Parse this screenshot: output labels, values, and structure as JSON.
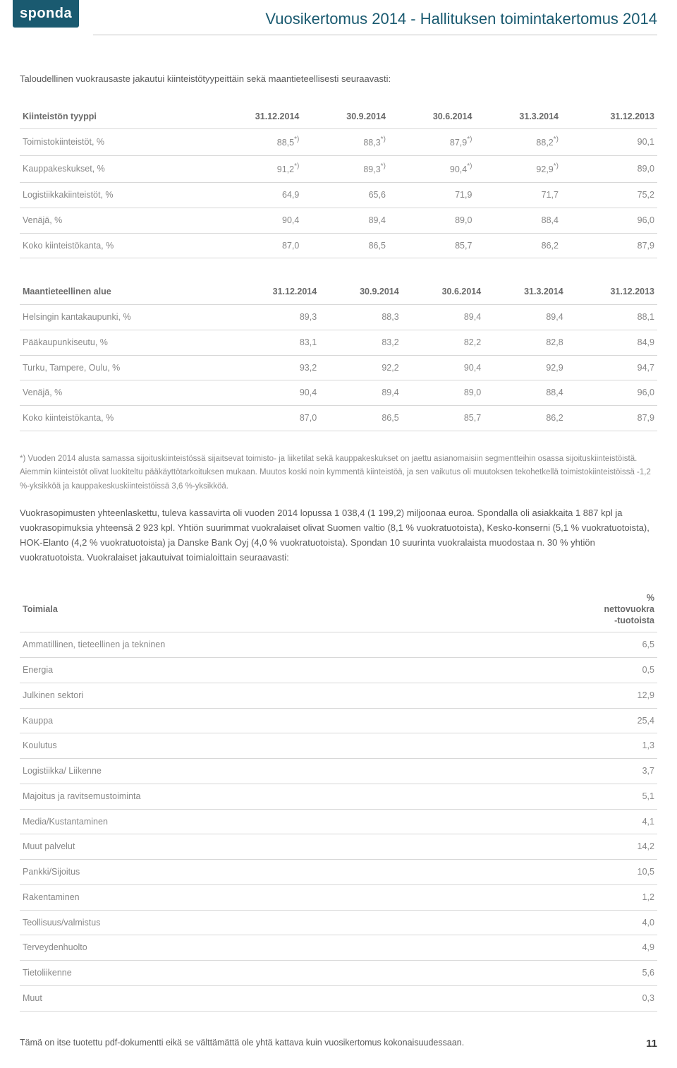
{
  "header": {
    "logo": "sponda",
    "title": "Vuosikertomus 2014 - Hallituksen toimintakertomus 2014"
  },
  "intro": "Taloudellinen vuokrausaste jakautui kiinteistötyypeittäin sekä maantieteellisesti seuraavasti:",
  "table1": {
    "columns": [
      "Kiinteistön tyyppi",
      "31.12.2014",
      "30.9.2014",
      "30.6.2014",
      "31.3.2014",
      "31.12.2013"
    ],
    "rows": [
      {
        "label": "Toimistokiinteistöt, %",
        "vals": [
          "88,5",
          "88,3",
          "87,9",
          "88,2",
          "90,1"
        ],
        "sup": [
          true,
          true,
          true,
          true,
          false
        ]
      },
      {
        "label": "Kauppakeskukset, %",
        "vals": [
          "91,2",
          "89,3",
          "90,4",
          "92,9",
          "89,0"
        ],
        "sup": [
          true,
          true,
          true,
          true,
          false
        ]
      },
      {
        "label": "Logistiikkakiinteistöt, %",
        "vals": [
          "64,9",
          "65,6",
          "71,9",
          "71,7",
          "75,2"
        ],
        "sup": [
          false,
          false,
          false,
          false,
          false
        ]
      },
      {
        "label": "Venäjä, %",
        "vals": [
          "90,4",
          "89,4",
          "89,0",
          "88,4",
          "96,0"
        ],
        "sup": [
          false,
          false,
          false,
          false,
          false
        ]
      },
      {
        "label": "Koko kiinteistökanta, %",
        "vals": [
          "87,0",
          "86,5",
          "85,7",
          "86,2",
          "87,9"
        ],
        "sup": [
          false,
          false,
          false,
          false,
          false
        ]
      }
    ]
  },
  "table2": {
    "columns": [
      "Maantieteellinen alue",
      "31.12.2014",
      "30.9.2014",
      "30.6.2014",
      "31.3.2014",
      "31.12.2013"
    ],
    "rows": [
      {
        "label": "Helsingin kantakaupunki, %",
        "vals": [
          "89,3",
          "88,3",
          "89,4",
          "89,4",
          "88,1"
        ]
      },
      {
        "label": "Pääkaupunkiseutu, %",
        "vals": [
          "83,1",
          "83,2",
          "82,2",
          "82,8",
          "84,9"
        ]
      },
      {
        "label": "Turku, Tampere, Oulu, %",
        "vals": [
          "93,2",
          "92,2",
          "90,4",
          "92,9",
          "94,7"
        ]
      },
      {
        "label": "Venäjä, %",
        "vals": [
          "90,4",
          "89,4",
          "89,0",
          "88,4",
          "96,0"
        ]
      },
      {
        "label": "Koko kiinteistökanta, %",
        "vals": [
          "87,0",
          "86,5",
          "85,7",
          "86,2",
          "87,9"
        ]
      }
    ]
  },
  "footnote": "*) Vuoden 2014 alusta samassa sijoituskiinteistössä sijaitsevat toimisto- ja liiketilat sekä kauppakeskukset on jaettu asianomaisiin segmentteihin osassa sijoituskiinteistöistä. Aiemmin kiinteistöt olivat luokiteltu pääkäyttötarkoituksen mukaan. Muutos koski noin kymmentä kiinteistöä, ja sen vaikutus oli muutoksen tekohetkellä toimistokiinteistöissä -1,2 %-yksikköä ja kauppakeskuskiinteistöissä 3,6 %-yksikköä.",
  "body_para": "Vuokrasopimusten yhteenlaskettu, tuleva kassavirta oli vuoden 2014 lopussa 1 038,4 (1 199,2) miljoonaa euroa. Spondalla oli asiakkaita 1 887 kpl ja vuokrasopimuksia yhteensä 2 923 kpl. Yhtiön suurimmat vuokralaiset olivat Suomen valtio (8,1 % vuokratuotoista), Kesko-konserni (5,1 % vuokratuotoista), HOK-Elanto (4,2 % vuokratuotoista) ja Danske Bank Oyj (4,0 % vuokratuotoista). Spondan 10 suurinta vuokralaista muodostaa n. 30 % yhtiön vuokratuotoista. Vuokralaiset jakautuivat toimialoittain seuraavasti:",
  "table3": {
    "col_left": "Toimiala",
    "col_right": "%\nnettovuokra\n-tuotoista",
    "rows": [
      [
        "Ammatillinen, tieteellinen ja tekninen",
        "6,5"
      ],
      [
        "Energia",
        "0,5"
      ],
      [
        "Julkinen sektori",
        "12,9"
      ],
      [
        "Kauppa",
        "25,4"
      ],
      [
        "Koulutus",
        "1,3"
      ],
      [
        "Logistiikka/ Liikenne",
        "3,7"
      ],
      [
        "Majoitus ja ravitsemustoiminta",
        "5,1"
      ],
      [
        "Media/Kustantaminen",
        "4,1"
      ],
      [
        "Muut palvelut",
        "14,2"
      ],
      [
        "Pankki/Sijoitus",
        "10,5"
      ],
      [
        "Rakentaminen",
        "1,2"
      ],
      [
        "Teollisuus/valmistus",
        "4,0"
      ],
      [
        "Terveydenhuolto",
        "4,9"
      ],
      [
        "Tietoliikenne",
        "5,6"
      ],
      [
        "Muut",
        "0,3"
      ]
    ]
  },
  "footer": {
    "disclaimer": "Tämä on itse tuotettu pdf-dokumentti eikä se välttämättä ole yhtä kattava kuin vuosikertomus kokonaisuudessaan.",
    "page": "11"
  },
  "style": {
    "accent": "#1a5a70",
    "text": "#5a5a5a",
    "muted": "#888888",
    "rule": "#d8d8d8"
  }
}
